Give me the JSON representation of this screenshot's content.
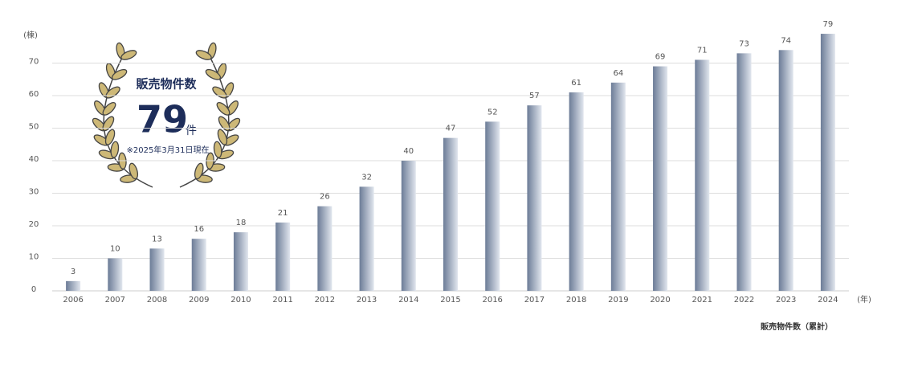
{
  "chart_data": {
    "type": "bar",
    "y_label": "(棟)",
    "x_label": "(年)",
    "caption": "販売物件数（累計）",
    "categories": [
      "2006",
      "2007",
      "2008",
      "2009",
      "2010",
      "2011",
      "2012",
      "2013",
      "2014",
      "2015",
      "2016",
      "2017",
      "2018",
      "2019",
      "2020",
      "2021",
      "2022",
      "2023",
      "2024"
    ],
    "values": [
      3,
      10,
      13,
      16,
      18,
      21,
      26,
      32,
      40,
      47,
      52,
      57,
      61,
      64,
      69,
      71,
      73,
      74,
      79
    ],
    "gradient": [
      "#6c7c97",
      "#e1e6ee"
    ],
    "ylim": [
      0,
      80
    ],
    "yticks": [
      0,
      10,
      20,
      30,
      40,
      50,
      60,
      70
    ],
    "grid": true
  },
  "badge": {
    "title": "販売物件数",
    "number": "79",
    "unit": "件",
    "note": "※2025年3月31日現在"
  }
}
